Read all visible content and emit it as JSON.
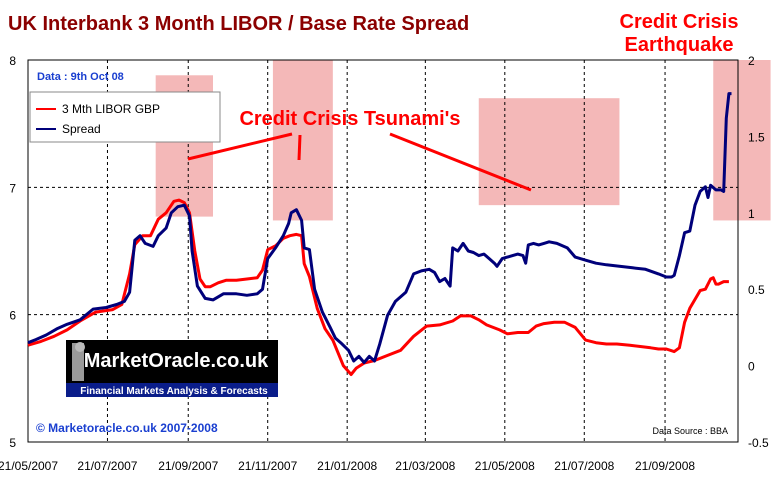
{
  "chart_data": {
    "type": "line",
    "title": "UK Interbank 3 Month LIBOR / Base Rate Spread",
    "annotations": {
      "date_label": "Data : 9th Oct  08",
      "tsunami": "Credit Crisis Tsunami's",
      "earthquake_line1": "Credit Crisis",
      "earthquake_line2": "Earthquake",
      "copyright": "© Marketoracle.co.uk   2007-2008",
      "source": "Data Source : BBA"
    },
    "logo": {
      "name": "MarketOracle.co.uk",
      "tagline": "Financial Markets Analysis & Forecasts"
    },
    "x_tick_labels": [
      "21/05/2007",
      "21/07/2007",
      "21/09/2007",
      "21/11/2007",
      "21/01/2008",
      "21/03/2008",
      "21/05/2008",
      "21/07/2008",
      "21/09/2008"
    ],
    "x_tick_days": [
      0,
      61,
      123,
      184,
      245,
      305,
      366,
      427,
      489
    ],
    "x_range_days": [
      0,
      545
    ],
    "y_left": {
      "ticks": [
        "5",
        "6",
        "7",
        "8"
      ],
      "range": [
        5,
        8
      ]
    },
    "y_right": {
      "ticks": [
        "-0.5",
        "0",
        "0.5",
        "1",
        "1.5",
        "2"
      ],
      "range": [
        -0.5,
        2
      ]
    },
    "grid": {
      "horizontal": "dashed",
      "vertical": "dashed"
    },
    "legend_position": "top-left",
    "highlight_color": "#f4b8b8",
    "highlights": [
      {
        "x": [
          98,
          142
        ],
        "y": [
          0.04,
          0.41
        ]
      },
      {
        "x": [
          188,
          234
        ],
        "y": [
          0.0,
          0.42
        ]
      },
      {
        "x": [
          346,
          454
        ],
        "y": [
          0.1,
          0.38
        ]
      },
      {
        "x": [
          526,
          570
        ],
        "y": [
          0.0,
          0.42
        ]
      }
    ],
    "series": [
      {
        "name": "3 Mth LIBOR GBP",
        "axis": "left",
        "color": "#ff0000",
        "points": [
          [
            0,
            5.76
          ],
          [
            10,
            5.79
          ],
          [
            20,
            5.83
          ],
          [
            30,
            5.88
          ],
          [
            40,
            5.95
          ],
          [
            52,
            6.02
          ],
          [
            65,
            6.04
          ],
          [
            72,
            6.08
          ],
          [
            78,
            6.32
          ],
          [
            82,
            6.55
          ],
          [
            88,
            6.62
          ],
          [
            94,
            6.62
          ],
          [
            100,
            6.75
          ],
          [
            106,
            6.8
          ],
          [
            112,
            6.89
          ],
          [
            116,
            6.9
          ],
          [
            120,
            6.88
          ],
          [
            124,
            6.8
          ],
          [
            128,
            6.5
          ],
          [
            132,
            6.28
          ],
          [
            136,
            6.22
          ],
          [
            140,
            6.22
          ],
          [
            146,
            6.25
          ],
          [
            152,
            6.27
          ],
          [
            160,
            6.27
          ],
          [
            168,
            6.28
          ],
          [
            176,
            6.29
          ],
          [
            180,
            6.35
          ],
          [
            184,
            6.51
          ],
          [
            190,
            6.54
          ],
          [
            196,
            6.6
          ],
          [
            201,
            6.62
          ],
          [
            206,
            6.63
          ],
          [
            210,
            6.62
          ],
          [
            212,
            6.4
          ],
          [
            216,
            6.3
          ],
          [
            222,
            6.05
          ],
          [
            228,
            5.89
          ],
          [
            234,
            5.8
          ],
          [
            238,
            5.7
          ],
          [
            242,
            5.6
          ],
          [
            248,
            5.53
          ],
          [
            252,
            5.58
          ],
          [
            258,
            5.62
          ],
          [
            266,
            5.64
          ],
          [
            276,
            5.68
          ],
          [
            286,
            5.72
          ],
          [
            296,
            5.83
          ],
          [
            306,
            5.91
          ],
          [
            316,
            5.92
          ],
          [
            326,
            5.95
          ],
          [
            332,
            5.99
          ],
          [
            340,
            5.99
          ],
          [
            346,
            5.96
          ],
          [
            352,
            5.92
          ],
          [
            362,
            5.88
          ],
          [
            368,
            5.85
          ],
          [
            376,
            5.86
          ],
          [
            384,
            5.86
          ],
          [
            390,
            5.91
          ],
          [
            396,
            5.93
          ],
          [
            404,
            5.94
          ],
          [
            412,
            5.94
          ],
          [
            420,
            5.9
          ],
          [
            428,
            5.8
          ],
          [
            436,
            5.78
          ],
          [
            444,
            5.77
          ],
          [
            452,
            5.77
          ],
          [
            462,
            5.76
          ],
          [
            470,
            5.75
          ],
          [
            478,
            5.74
          ],
          [
            484,
            5.73
          ],
          [
            490,
            5.73
          ],
          [
            496,
            5.71
          ],
          [
            500,
            5.74
          ],
          [
            504,
            5.94
          ],
          [
            508,
            6.05
          ],
          [
            512,
            6.12
          ],
          [
            516,
            6.19
          ],
          [
            520,
            6.2
          ],
          [
            524,
            6.28
          ],
          [
            526,
            6.29
          ],
          [
            528,
            6.24
          ],
          [
            530,
            6.24
          ],
          [
            534,
            6.26
          ],
          [
            538,
            6.26
          ]
        ]
      },
      {
        "name": "Spread",
        "axis": "right",
        "color": "#00007a",
        "points": [
          [
            0,
            0.15
          ],
          [
            6,
            0.17
          ],
          [
            14,
            0.2
          ],
          [
            22,
            0.24
          ],
          [
            30,
            0.27
          ],
          [
            40,
            0.3
          ],
          [
            50,
            0.37
          ],
          [
            60,
            0.38
          ],
          [
            68,
            0.4
          ],
          [
            74,
            0.42
          ],
          [
            78,
            0.48
          ],
          [
            82,
            0.82
          ],
          [
            86,
            0.85
          ],
          [
            90,
            0.8
          ],
          [
            96,
            0.78
          ],
          [
            100,
            0.85
          ],
          [
            106,
            0.9
          ],
          [
            110,
            1.0
          ],
          [
            115,
            1.04
          ],
          [
            120,
            1.05
          ],
          [
            124,
            0.98
          ],
          [
            126,
            0.75
          ],
          [
            130,
            0.52
          ],
          [
            136,
            0.44
          ],
          [
            142,
            0.43
          ],
          [
            150,
            0.47
          ],
          [
            160,
            0.47
          ],
          [
            168,
            0.46
          ],
          [
            176,
            0.47
          ],
          [
            180,
            0.5
          ],
          [
            184,
            0.7
          ],
          [
            190,
            0.77
          ],
          [
            196,
            0.85
          ],
          [
            200,
            0.93
          ],
          [
            202,
            1.0
          ],
          [
            206,
            1.02
          ],
          [
            210,
            0.95
          ],
          [
            212,
            0.77
          ],
          [
            216,
            0.76
          ],
          [
            220,
            0.5
          ],
          [
            226,
            0.35
          ],
          [
            232,
            0.25
          ],
          [
            236,
            0.18
          ],
          [
            240,
            0.15
          ],
          [
            246,
            0.1
          ],
          [
            250,
            0.03
          ],
          [
            254,
            0.06
          ],
          [
            258,
            0.02
          ],
          [
            262,
            0.06
          ],
          [
            266,
            0.03
          ],
          [
            270,
            0.14
          ],
          [
            276,
            0.33
          ],
          [
            282,
            0.42
          ],
          [
            290,
            0.48
          ],
          [
            296,
            0.6
          ],
          [
            302,
            0.62
          ],
          [
            308,
            0.63
          ],
          [
            312,
            0.61
          ],
          [
            316,
            0.55
          ],
          [
            320,
            0.57
          ],
          [
            324,
            0.52
          ],
          [
            326,
            0.77
          ],
          [
            330,
            0.75
          ],
          [
            334,
            0.8
          ],
          [
            338,
            0.75
          ],
          [
            342,
            0.74
          ],
          [
            346,
            0.72
          ],
          [
            350,
            0.73
          ],
          [
            354,
            0.7
          ],
          [
            358,
            0.67
          ],
          [
            360,
            0.65
          ],
          [
            364,
            0.7
          ],
          [
            368,
            0.71
          ],
          [
            372,
            0.72
          ],
          [
            376,
            0.73
          ],
          [
            380,
            0.72
          ],
          [
            382,
            0.67
          ],
          [
            384,
            0.79
          ],
          [
            388,
            0.8
          ],
          [
            392,
            0.79
          ],
          [
            396,
            0.8
          ],
          [
            400,
            0.81
          ],
          [
            406,
            0.8
          ],
          [
            414,
            0.77
          ],
          [
            420,
            0.71
          ],
          [
            428,
            0.69
          ],
          [
            436,
            0.67
          ],
          [
            444,
            0.66
          ],
          [
            454,
            0.65
          ],
          [
            464,
            0.64
          ],
          [
            474,
            0.63
          ],
          [
            484,
            0.6
          ],
          [
            490,
            0.58
          ],
          [
            494,
            0.58
          ],
          [
            496,
            0.59
          ],
          [
            500,
            0.72
          ],
          [
            504,
            0.87
          ],
          [
            508,
            0.88
          ],
          [
            512,
            1.05
          ],
          [
            516,
            1.14
          ],
          [
            520,
            1.17
          ],
          [
            522,
            1.1
          ],
          [
            524,
            1.18
          ],
          [
            528,
            1.15
          ],
          [
            532,
            1.15
          ],
          [
            534,
            1.14
          ],
          [
            536,
            1.62
          ],
          [
            538,
            1.78
          ],
          [
            540,
            1.78
          ]
        ]
      }
    ]
  }
}
